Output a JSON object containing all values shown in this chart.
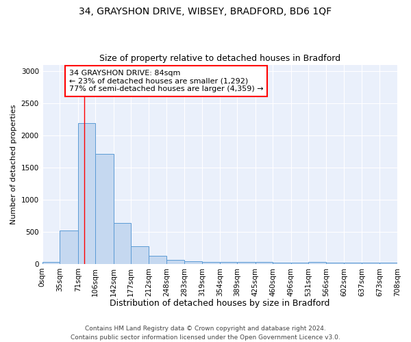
{
  "title1": "34, GRAYSHON DRIVE, WIBSEY, BRADFORD, BD6 1QF",
  "title2": "Size of property relative to detached houses in Bradford",
  "xlabel": "Distribution of detached houses by size in Bradford",
  "ylabel": "Number of detached properties",
  "bin_edges": [
    0,
    35,
    71,
    106,
    142,
    177,
    212,
    248,
    283,
    319,
    354,
    389,
    425,
    460,
    496,
    531,
    566,
    602,
    637,
    673,
    708
  ],
  "bin_labels": [
    "0sqm",
    "35sqm",
    "71sqm",
    "106sqm",
    "142sqm",
    "177sqm",
    "212sqm",
    "248sqm",
    "283sqm",
    "319sqm",
    "354sqm",
    "389sqm",
    "425sqm",
    "460sqm",
    "496sqm",
    "531sqm",
    "566sqm",
    "602sqm",
    "637sqm",
    "673sqm",
    "708sqm"
  ],
  "counts": [
    30,
    520,
    2195,
    1710,
    635,
    270,
    130,
    65,
    40,
    30,
    25,
    30,
    25,
    20,
    20,
    30,
    15,
    15,
    15,
    15
  ],
  "bar_color": "#c5d8f0",
  "bar_edge_color": "#5b9bd5",
  "red_line_x": 84,
  "annotation_line1": "34 GRAYSHON DRIVE: 84sqm",
  "annotation_line2": "← 23% of detached houses are smaller (1,292)",
  "annotation_line3": "77% of semi-detached houses are larger (4,359) →",
  "annotation_box_color": "white",
  "annotation_box_edge_color": "red",
  "ylim": [
    0,
    3100
  ],
  "yticks": [
    0,
    500,
    1000,
    1500,
    2000,
    2500,
    3000
  ],
  "bg_color": "#eaf0fb",
  "footer_text": "Contains HM Land Registry data © Crown copyright and database right 2024.\nContains public sector information licensed under the Open Government Licence v3.0.",
  "title1_fontsize": 10,
  "title2_fontsize": 9,
  "xlabel_fontsize": 9,
  "ylabel_fontsize": 8,
  "tick_fontsize": 7.5,
  "annotation_fontsize": 8,
  "footer_fontsize": 6.5
}
